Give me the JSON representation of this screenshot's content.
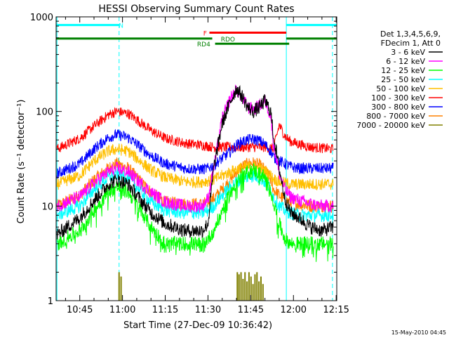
{
  "chart_data": {
    "type": "line",
    "title": "HESSI Observing Summary Count Rates",
    "xlabel": "Start Time (27-Dec-09 10:36:42)",
    "ylabel": "Count Rate (s⁻¹ detector⁻¹)",
    "yscale": "log",
    "ylim": [
      1,
      1000
    ],
    "xlim_minutes": [
      36.7,
      135.2
    ],
    "x_ticks": [
      {
        "label": "10:45",
        "minute": 45
      },
      {
        "label": "11:00",
        "minute": 60
      },
      {
        "label": "11:15",
        "minute": 75
      },
      {
        "label": "11:30",
        "minute": 90
      },
      {
        "label": "11:45",
        "minute": 105
      },
      {
        "label": "12:00",
        "minute": 120
      },
      {
        "label": "12:15",
        "minute": 135
      }
    ],
    "y_ticks": [
      {
        "label": "1",
        "value": 1
      },
      {
        "label": "10",
        "value": 10
      },
      {
        "label": "100",
        "value": 100
      },
      {
        "label": "1000",
        "value": 1000
      }
    ],
    "legend_header": [
      "Det 1,3,4,5,6,9,",
      "FDecim 1, Att 0"
    ],
    "legend_placement": "right",
    "x_minutes": [
      37,
      45,
      50,
      55,
      58,
      62,
      65,
      70,
      75,
      82,
      88,
      90,
      92,
      95,
      98,
      100,
      102,
      104,
      106,
      108,
      110,
      112,
      113,
      115,
      117,
      119,
      122,
      126,
      130,
      134
    ],
    "series": [
      {
        "name": "3 - 6 keV",
        "color": "#000000",
        "values": [
          5,
          7.5,
          11.5,
          17,
          19,
          17,
          13,
          8.5,
          6.5,
          5.5,
          5.5,
          6.5,
          25,
          75,
          130,
          175,
          145,
          110,
          100,
          110,
          130,
          100,
          55,
          25,
          12,
          8.5,
          7.5,
          6,
          5.5,
          6
        ]
      },
      {
        "name": "6 - 12 keV",
        "color": "#ff00ff",
        "values": [
          10,
          12.5,
          17.5,
          23,
          25,
          23,
          19,
          14,
          11,
          10,
          10,
          12,
          25,
          85,
          140,
          170,
          140,
          110,
          105,
          115,
          130,
          90,
          45,
          22,
          15,
          12.5,
          11.5,
          10.5,
          10,
          10
        ]
      },
      {
        "name": "12 - 25 keV",
        "color": "#00ff00",
        "values": [
          4,
          5.5,
          9,
          14,
          16,
          14,
          10.5,
          6,
          4,
          4,
          4,
          4.5,
          5.5,
          9,
          14,
          18,
          21,
          23,
          24,
          22,
          20,
          15,
          11,
          6.5,
          4.5,
          4,
          4,
          4,
          4,
          4
        ]
      },
      {
        "name": "25 - 50 keV",
        "color": "#00ffff",
        "values": [
          8,
          10,
          15,
          20,
          22,
          20,
          16,
          11,
          9,
          8.5,
          8.5,
          9,
          10,
          13,
          16,
          18,
          19.5,
          20.5,
          21,
          20,
          18,
          15,
          12.5,
          10,
          9,
          8.5,
          8,
          8,
          8,
          8
        ]
      },
      {
        "name": "50 - 100 keV",
        "color": "#ffbf00",
        "values": [
          17,
          21,
          30,
          38,
          40,
          38,
          32,
          24,
          20,
          18,
          18,
          18.5,
          19,
          21,
          23,
          24.5,
          25.5,
          26,
          26,
          25,
          23.5,
          21,
          19.5,
          18,
          17.5,
          17,
          17,
          17,
          17,
          17
        ]
      },
      {
        "name": "100 - 300 keV",
        "color": "#ff0000",
        "values": [
          40,
          52,
          70,
          92,
          100,
          95,
          82,
          63,
          52,
          46,
          44,
          43,
          42,
          42,
          42,
          42,
          42,
          42,
          42,
          42,
          42,
          41,
          40,
          72,
          55,
          48,
          45,
          42,
          41,
          40
        ]
      },
      {
        "name": "300 - 800 keV",
        "color": "#0000ff",
        "values": [
          22,
          28,
          40,
          53,
          57,
          53,
          45,
          34,
          28,
          25,
          24.5,
          25,
          27,
          32,
          38,
          44,
          48,
          50,
          51,
          49,
          45,
          38,
          33,
          30,
          28,
          26,
          25,
          25,
          25,
          25
        ]
      },
      {
        "name": "800 - 7000 keV",
        "color": "#ff8000",
        "values": [
          10,
          13,
          19,
          25,
          28,
          25,
          20,
          14,
          11,
          10.5,
          10.5,
          11,
          12,
          15,
          19,
          23,
          26,
          28,
          28.5,
          27,
          24,
          19,
          15,
          13,
          11.5,
          11,
          10.5,
          10,
          10,
          10
        ]
      },
      {
        "name": "7000 - 20000 keV",
        "color": "#808000",
        "values": [
          1,
          1,
          1,
          1,
          1,
          1,
          1,
          1,
          1,
          1,
          1,
          1,
          1,
          1,
          1,
          1,
          1,
          1,
          1,
          1,
          1,
          1,
          1,
          1,
          1,
          1,
          1,
          1,
          1,
          1
        ]
      }
    ],
    "spikes_7000": [
      {
        "minute": 58.8,
        "value": 2.0
      },
      {
        "minute": 59.5,
        "value": 1.8
      },
      {
        "minute": 100.3,
        "value": 2.0
      },
      {
        "minute": 100.9,
        "value": 1.9
      },
      {
        "minute": 101.6,
        "value": 2.0
      },
      {
        "minute": 102.3,
        "value": 1.7
      },
      {
        "minute": 103.0,
        "value": 2.0
      },
      {
        "minute": 103.7,
        "value": 1.6
      },
      {
        "minute": 104.4,
        "value": 2.0
      },
      {
        "minute": 105.1,
        "value": 1.8
      },
      {
        "minute": 105.8,
        "value": 1.5
      },
      {
        "minute": 106.5,
        "value": 1.9
      },
      {
        "minute": 107.2,
        "value": 2.0
      },
      {
        "minute": 107.9,
        "value": 1.6
      },
      {
        "minute": 108.6,
        "value": 1.8
      },
      {
        "minute": 109.3,
        "value": 1.5
      }
    ],
    "vertical_markers": [
      {
        "minute": 37.0,
        "style": "solid",
        "color": "#00ffff"
      },
      {
        "minute": 58.8,
        "style": "dashed",
        "color": "#00ffff"
      },
      {
        "minute": 117.5,
        "style": "solid",
        "color": "#00ffff"
      },
      {
        "minute": 133.7,
        "style": "dashed",
        "color": "#00ffff"
      }
    ],
    "flag_bars": [
      {
        "label": "N",
        "color": "#00ffff",
        "label_minute": 59.5,
        "value": 820,
        "segments": [
          [
            36.7,
            58.8
          ],
          [
            58.8,
            58.8
          ],
          [
            117.5,
            135.2
          ]
        ],
        "label_color": "#00ffff"
      },
      {
        "label": "F",
        "color": "#ff0000",
        "label_minute": 89.0,
        "value": 680,
        "segments": [
          [
            90.5,
            117.5
          ]
        ],
        "label_color": "#ff0000"
      },
      {
        "label": "RDO",
        "color": "#008000",
        "label_minute": 97.0,
        "value": 590,
        "segments": [
          [
            36.7,
            91.5
          ],
          [
            117.5,
            135.2
          ]
        ],
        "label_color": "#008000"
      },
      {
        "label": "RD4",
        "color": "#008000",
        "label_minute": 88.5,
        "value": 520,
        "segments": [
          [
            92.5,
            118.5
          ]
        ],
        "label_color": "#008000"
      }
    ],
    "footer_timestamp": "15-May-2010 04:45"
  }
}
